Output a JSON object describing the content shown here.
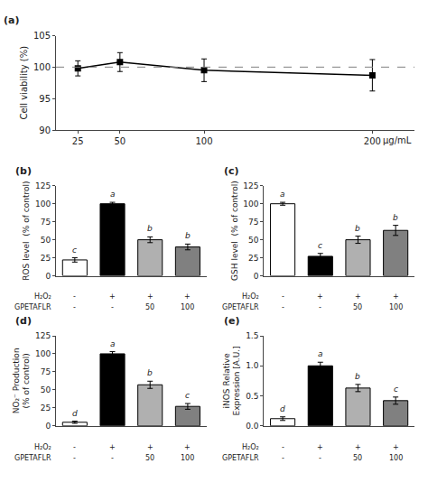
{
  "chart_data": [
    {
      "type": "line",
      "title": "(a)",
      "x": [
        25,
        50,
        100,
        200
      ],
      "values": [
        99.8,
        100.8,
        99.5,
        98.7
      ],
      "errors": [
        1.2,
        1.5,
        1.8,
        2.5
      ],
      "color": "#000000",
      "marker": "square",
      "line_style": "solid",
      "hline": 100,
      "xlabel": "μg/mL",
      "ylabel": "Cell viability (%)",
      "xlim": [
        12,
        225
      ],
      "xticks": [
        25,
        50,
        100,
        200
      ],
      "ylim": [
        90,
        105
      ],
      "yticks": [
        90,
        95,
        100,
        105
      ],
      "grid": false
    },
    {
      "type": "bar",
      "title": "(b)",
      "categories": [
        null,
        null,
        null,
        null
      ],
      "values": [
        22,
        100,
        50,
        40
      ],
      "errors": [
        3,
        2,
        4,
        4
      ],
      "colors": [
        "#ffffff",
        "#000000",
        "#b0b0b0",
        "#808080"
      ],
      "edge_color": "#000000",
      "annotations": [
        "c",
        "a",
        "b",
        "b"
      ],
      "rows": [
        {
          "label": "H₂O₂",
          "values": [
            "-",
            "+",
            "+",
            "+"
          ]
        },
        {
          "label": "GPETAFLR",
          "values": [
            "-",
            "-",
            "50",
            "100"
          ]
        }
      ],
      "ylabel": "ROS level  (% of control)",
      "ylim": [
        0,
        125
      ],
      "yticks": [
        0,
        25,
        50,
        75,
        100,
        125
      ],
      "grid": false
    },
    {
      "type": "bar",
      "title": "(c)",
      "categories": [
        null,
        null,
        null,
        null
      ],
      "values": [
        100,
        27,
        50,
        63
      ],
      "errors": [
        2,
        4,
        5,
        7
      ],
      "colors": [
        "#ffffff",
        "#000000",
        "#b0b0b0",
        "#808080"
      ],
      "edge_color": "#000000",
      "annotations": [
        "a",
        "c",
        "b",
        "b"
      ],
      "rows": [
        {
          "label": "H₂O₂",
          "values": [
            "-",
            "+",
            "+",
            "+"
          ]
        },
        {
          "label": "GPETAFLR",
          "values": [
            "-",
            "-",
            "50",
            "100"
          ]
        }
      ],
      "ylabel": "GSH level  (% of control)",
      "ylim": [
        0,
        125
      ],
      "yticks": [
        0,
        25,
        50,
        75,
        100,
        125
      ],
      "grid": false
    },
    {
      "type": "bar",
      "title": "(d)",
      "categories": [
        null,
        null,
        null,
        null
      ],
      "values": [
        5,
        100,
        57,
        27
      ],
      "errors": [
        1.5,
        3,
        5,
        4
      ],
      "colors": [
        "#ffffff",
        "#000000",
        "#b0b0b0",
        "#808080"
      ],
      "edge_color": "#000000",
      "annotations": [
        "d",
        "a",
        "b",
        "c"
      ],
      "rows": [
        {
          "label": "H₂O₂",
          "values": [
            "-",
            "+",
            "+",
            "+"
          ]
        },
        {
          "label": "GPETAFLR",
          "values": [
            "-",
            "-",
            "50",
            "100"
          ]
        }
      ],
      "ylabel": "NO₂⁻ Production\n(% of control)",
      "ylim": [
        0,
        125
      ],
      "yticks": [
        0,
        25,
        50,
        75,
        100,
        125
      ],
      "grid": false
    },
    {
      "type": "bar",
      "title": "(e)",
      "categories": [
        null,
        null,
        null,
        null
      ],
      "values": [
        0.12,
        1.0,
        0.63,
        0.42
      ],
      "errors": [
        0.03,
        0.06,
        0.06,
        0.06
      ],
      "colors": [
        "#ffffff",
        "#000000",
        "#b0b0b0",
        "#808080"
      ],
      "edge_color": "#000000",
      "annotations": [
        "d",
        "a",
        "b",
        "c"
      ],
      "rows": [
        {
          "label": "H₂O₂",
          "values": [
            "-",
            "+",
            "+",
            "+"
          ]
        },
        {
          "label": "GPETAFLR",
          "values": [
            "-",
            "-",
            "50",
            "100"
          ]
        }
      ],
      "ylabel": "iNOS Relative\nExpression [A.U.]",
      "ylim": [
        0,
        1.5
      ],
      "yticks": [
        {
          "value": 0,
          "label": "0.0"
        },
        0.5,
        {
          "value": 1,
          "label": "1.0"
        },
        1.5
      ],
      "grid": false
    }
  ]
}
